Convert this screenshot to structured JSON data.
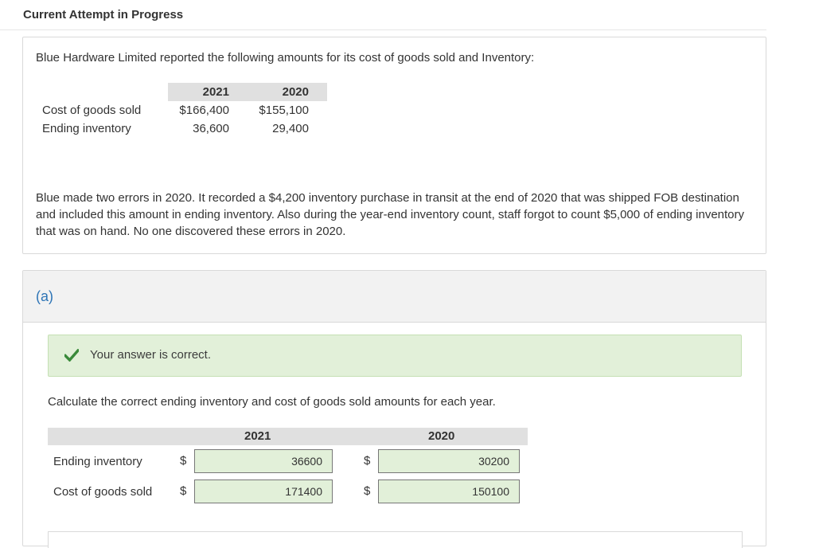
{
  "attempt_title": "Current Attempt in Progress",
  "question": {
    "intro": "Blue Hardware Limited reported the following amounts for its cost of goods sold and Inventory:",
    "table": {
      "headers": [
        "2021",
        "2020"
      ],
      "rows": [
        {
          "label": "Cost of goods sold",
          "values": [
            "$166,400",
            "$155,100"
          ]
        },
        {
          "label": "Ending inventory",
          "values": [
            "36,600",
            "29,400"
          ]
        }
      ]
    },
    "errors_text": "Blue made two errors in 2020. It recorded a $4,200 inventory purchase in transit at the end of 2020 that was shipped FOB destination and included this amount in ending inventory. Also during the year-end inventory count, staff forgot to count $5,000 of ending inventory that was on hand. No one discovered these errors in 2020."
  },
  "part": {
    "label": "(a)",
    "feedback": "Your answer is correct.",
    "instruction": "Calculate the correct ending inventory and cost of goods sold amounts for each year.",
    "headers": [
      "2021",
      "2020"
    ],
    "rows": [
      {
        "label": "Ending inventory",
        "currency": "$",
        "values": [
          "36600",
          "30200"
        ]
      },
      {
        "label": "Cost of goods sold",
        "currency": "$",
        "values": [
          "171400",
          "150100"
        ]
      }
    ]
  },
  "colors": {
    "accent": "#2e75b6",
    "correct_bg": "#e2f0d9",
    "check": "#3a8a3a"
  }
}
